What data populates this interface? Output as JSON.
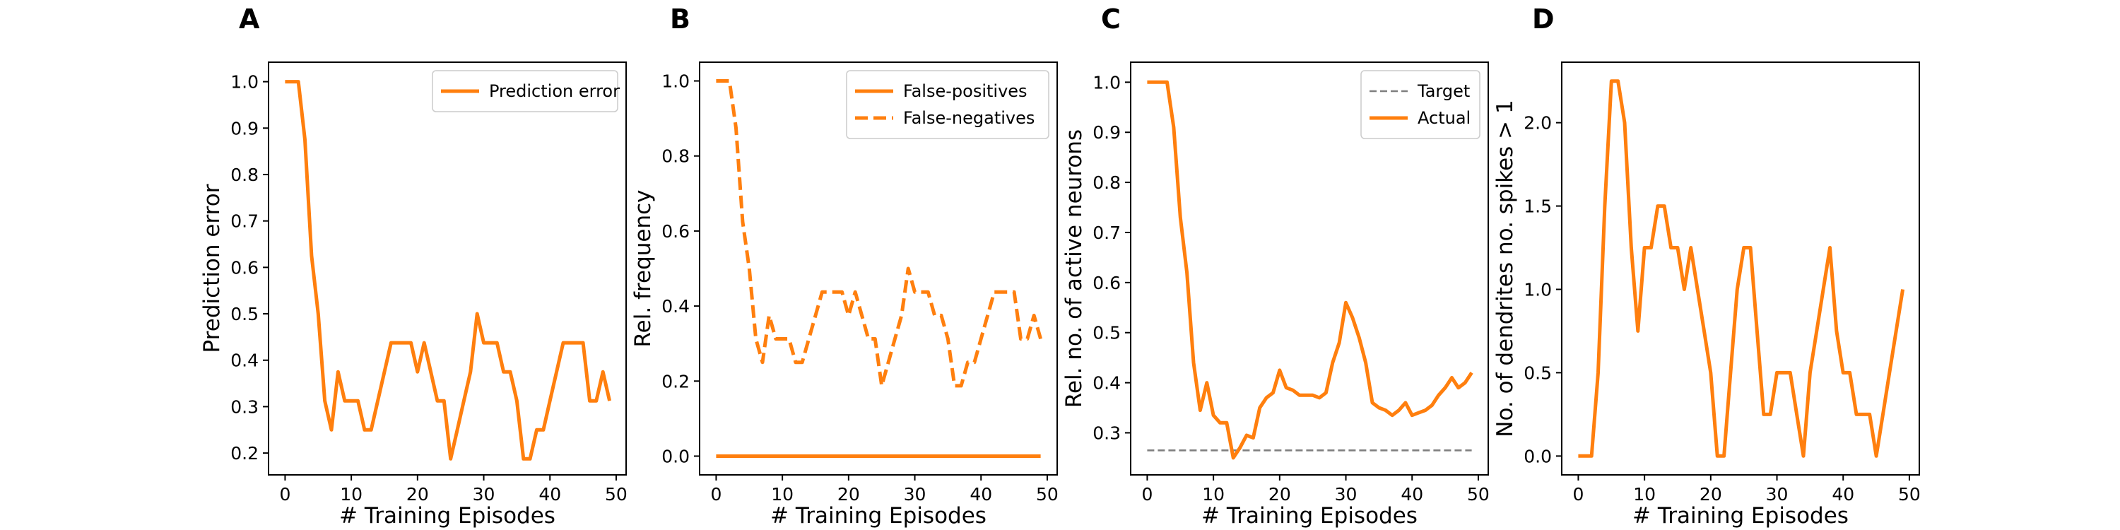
{
  "colors": {
    "series": "#ff7f0e",
    "target": "#7f7f7f"
  },
  "chart_data": [
    {
      "panel": "A",
      "type": "line",
      "xlabel": "# Training Episodes",
      "ylabel": "Prediction error",
      "xlim": [
        -2.5,
        51.5
      ],
      "ylim": [
        0.153,
        1.042
      ],
      "xticks": [
        0,
        10,
        20,
        30,
        40,
        50
      ],
      "yticks": [
        0.2,
        0.3,
        0.4,
        0.5,
        0.6,
        0.7,
        0.8,
        0.9,
        1.0
      ],
      "xtick_labels": [
        "0",
        "10",
        "20",
        "30",
        "40",
        "50"
      ],
      "ytick_labels": [
        "0.2",
        "0.3",
        "0.4",
        "0.5",
        "0.6",
        "0.7",
        "0.8",
        "0.9",
        "1.0"
      ],
      "legend_position": "upper-right",
      "series": [
        {
          "name": "Prediction error",
          "style": "solid",
          "x": [
            0,
            1,
            2,
            3,
            4,
            5,
            6,
            7,
            8,
            9,
            10,
            11,
            12,
            13,
            14,
            15,
            16,
            17,
            18,
            19,
            20,
            21,
            22,
            23,
            24,
            25,
            26,
            27,
            28,
            29,
            30,
            31,
            32,
            33,
            34,
            35,
            36,
            37,
            38,
            39,
            40,
            41,
            42,
            43,
            44,
            45,
            46,
            47,
            48,
            49
          ],
          "y": [
            1.0,
            1.0,
            1.0,
            0.875,
            0.625,
            0.5,
            0.3125,
            0.25,
            0.375,
            0.3125,
            0.3125,
            0.3125,
            0.25,
            0.25,
            0.3125,
            0.375,
            0.4375,
            0.4375,
            0.4375,
            0.4375,
            0.375,
            0.4375,
            0.375,
            0.3125,
            0.3125,
            0.1875,
            0.25,
            0.3125,
            0.375,
            0.5,
            0.4375,
            0.4375,
            0.4375,
            0.375,
            0.375,
            0.3125,
            0.1875,
            0.1875,
            0.25,
            0.25,
            0.3125,
            0.375,
            0.4375,
            0.4375,
            0.4375,
            0.4375,
            0.3125,
            0.3125,
            0.375,
            0.3125
          ]
        }
      ]
    },
    {
      "panel": "B",
      "type": "line",
      "xlabel": "# Training Episodes",
      "ylabel": "Rel. frequency",
      "xlim": [
        -2.5,
        51.5
      ],
      "ylim": [
        -0.05,
        1.05
      ],
      "xticks": [
        0,
        10,
        20,
        30,
        40,
        50
      ],
      "yticks": [
        0.0,
        0.2,
        0.4,
        0.6,
        0.8,
        1.0
      ],
      "xtick_labels": [
        "0",
        "10",
        "20",
        "30",
        "40",
        "50"
      ],
      "ytick_labels": [
        "0.0",
        "0.2",
        "0.4",
        "0.6",
        "0.8",
        "1.0"
      ],
      "legend_position": "upper-right",
      "series": [
        {
          "name": "False-positives",
          "style": "solid",
          "x": [
            0,
            49
          ],
          "y": [
            0.0,
            0.0
          ]
        },
        {
          "name": "False-negatives",
          "style": "dashed",
          "x": [
            0,
            1,
            2,
            3,
            4,
            5,
            6,
            7,
            8,
            9,
            10,
            11,
            12,
            13,
            14,
            15,
            16,
            17,
            18,
            19,
            20,
            21,
            22,
            23,
            24,
            25,
            26,
            27,
            28,
            29,
            30,
            31,
            32,
            33,
            34,
            35,
            36,
            37,
            38,
            39,
            40,
            41,
            42,
            43,
            44,
            45,
            46,
            47,
            48,
            49
          ],
          "y": [
            1.0,
            1.0,
            1.0,
            0.875,
            0.625,
            0.5,
            0.3125,
            0.25,
            0.375,
            0.3125,
            0.3125,
            0.3125,
            0.25,
            0.25,
            0.3125,
            0.375,
            0.4375,
            0.4375,
            0.4375,
            0.4375,
            0.375,
            0.4375,
            0.375,
            0.3125,
            0.3125,
            0.1875,
            0.25,
            0.3125,
            0.375,
            0.5,
            0.4375,
            0.4375,
            0.4375,
            0.375,
            0.375,
            0.3125,
            0.1875,
            0.1875,
            0.25,
            0.25,
            0.3125,
            0.375,
            0.4375,
            0.4375,
            0.4375,
            0.4375,
            0.3125,
            0.3125,
            0.375,
            0.3125
          ]
        }
      ]
    },
    {
      "panel": "C",
      "type": "line",
      "xlabel": "# Training Episodes",
      "ylabel": "Rel. no. of active neurons",
      "xlim": [
        -2.5,
        51.5
      ],
      "ylim": [
        0.216,
        1.04
      ],
      "xticks": [
        0,
        10,
        20,
        30,
        40,
        50
      ],
      "yticks": [
        0.3,
        0.4,
        0.5,
        0.6,
        0.7,
        0.8,
        0.9,
        1.0
      ],
      "xtick_labels": [
        "0",
        "10",
        "20",
        "30",
        "40",
        "50"
      ],
      "ytick_labels": [
        "0.3",
        "0.4",
        "0.5",
        "0.6",
        "0.7",
        "0.8",
        "0.9",
        "1.0"
      ],
      "legend_position": "upper-right",
      "series": [
        {
          "name": "Target",
          "style": "dashed-thin",
          "color_key": "target",
          "x": [
            0,
            49
          ],
          "y": [
            0.265,
            0.265
          ]
        },
        {
          "name": "Actual",
          "style": "solid",
          "x": [
            0,
            1,
            2,
            3,
            4,
            5,
            6,
            7,
            8,
            9,
            10,
            11,
            12,
            13,
            14,
            15,
            16,
            17,
            18,
            19,
            20,
            21,
            22,
            23,
            24,
            25,
            26,
            27,
            28,
            29,
            30,
            31,
            32,
            33,
            34,
            35,
            36,
            37,
            38,
            39,
            40,
            41,
            42,
            43,
            44,
            45,
            46,
            47,
            48,
            49
          ],
          "y": [
            1.0,
            1.0,
            1.0,
            1.0,
            0.91,
            0.73,
            0.62,
            0.44,
            0.345,
            0.4,
            0.335,
            0.32,
            0.32,
            0.25,
            0.27,
            0.295,
            0.29,
            0.35,
            0.37,
            0.38,
            0.425,
            0.39,
            0.385,
            0.375,
            0.375,
            0.375,
            0.37,
            0.38,
            0.44,
            0.48,
            0.56,
            0.53,
            0.49,
            0.44,
            0.36,
            0.35,
            0.345,
            0.335,
            0.345,
            0.36,
            0.335,
            0.34,
            0.345,
            0.355,
            0.375,
            0.39,
            0.41,
            0.39,
            0.4,
            0.42
          ]
        }
      ]
    },
    {
      "panel": "D",
      "type": "line",
      "xlabel": "# Training Episodes",
      "ylabel": "No. of dendrites no. spikes > 1",
      "xlim": [
        -2.5,
        51.5
      ],
      "ylim": [
        -0.113,
        2.363
      ],
      "xticks": [
        0,
        10,
        20,
        30,
        40,
        50
      ],
      "yticks": [
        0.0,
        0.5,
        1.0,
        1.5,
        2.0
      ],
      "xtick_labels": [
        "0",
        "10",
        "20",
        "30",
        "40",
        "50"
      ],
      "ytick_labels": [
        "0.0",
        "0.5",
        "1.0",
        "1.5",
        "2.0"
      ],
      "legend_position": "none",
      "series": [
        {
          "style": "solid",
          "x": [
            0,
            1,
            2,
            3,
            4,
            5,
            6,
            7,
            8,
            9,
            10,
            11,
            12,
            13,
            14,
            15,
            16,
            17,
            18,
            19,
            20,
            21,
            22,
            23,
            24,
            25,
            26,
            27,
            28,
            29,
            30,
            31,
            32,
            33,
            34,
            35,
            36,
            37,
            38,
            39,
            40,
            41,
            42,
            43,
            44,
            45,
            46,
            47,
            48,
            49
          ],
          "y": [
            0.0,
            0.0,
            0.0,
            0.5,
            1.5,
            2.25,
            2.25,
            2.0,
            1.25,
            0.75,
            1.25,
            1.25,
            1.5,
            1.5,
            1.25,
            1.25,
            1.0,
            1.25,
            1.0,
            0.75,
            0.5,
            0.0,
            0.0,
            0.5,
            1.0,
            1.25,
            1.25,
            0.75,
            0.25,
            0.25,
            0.5,
            0.5,
            0.5,
            0.25,
            0.0,
            0.5,
            0.75,
            1.0,
            1.25,
            0.75,
            0.5,
            0.5,
            0.25,
            0.25,
            0.25,
            0.0,
            0.25,
            0.5,
            0.75,
            1.0
          ]
        }
      ]
    }
  ]
}
